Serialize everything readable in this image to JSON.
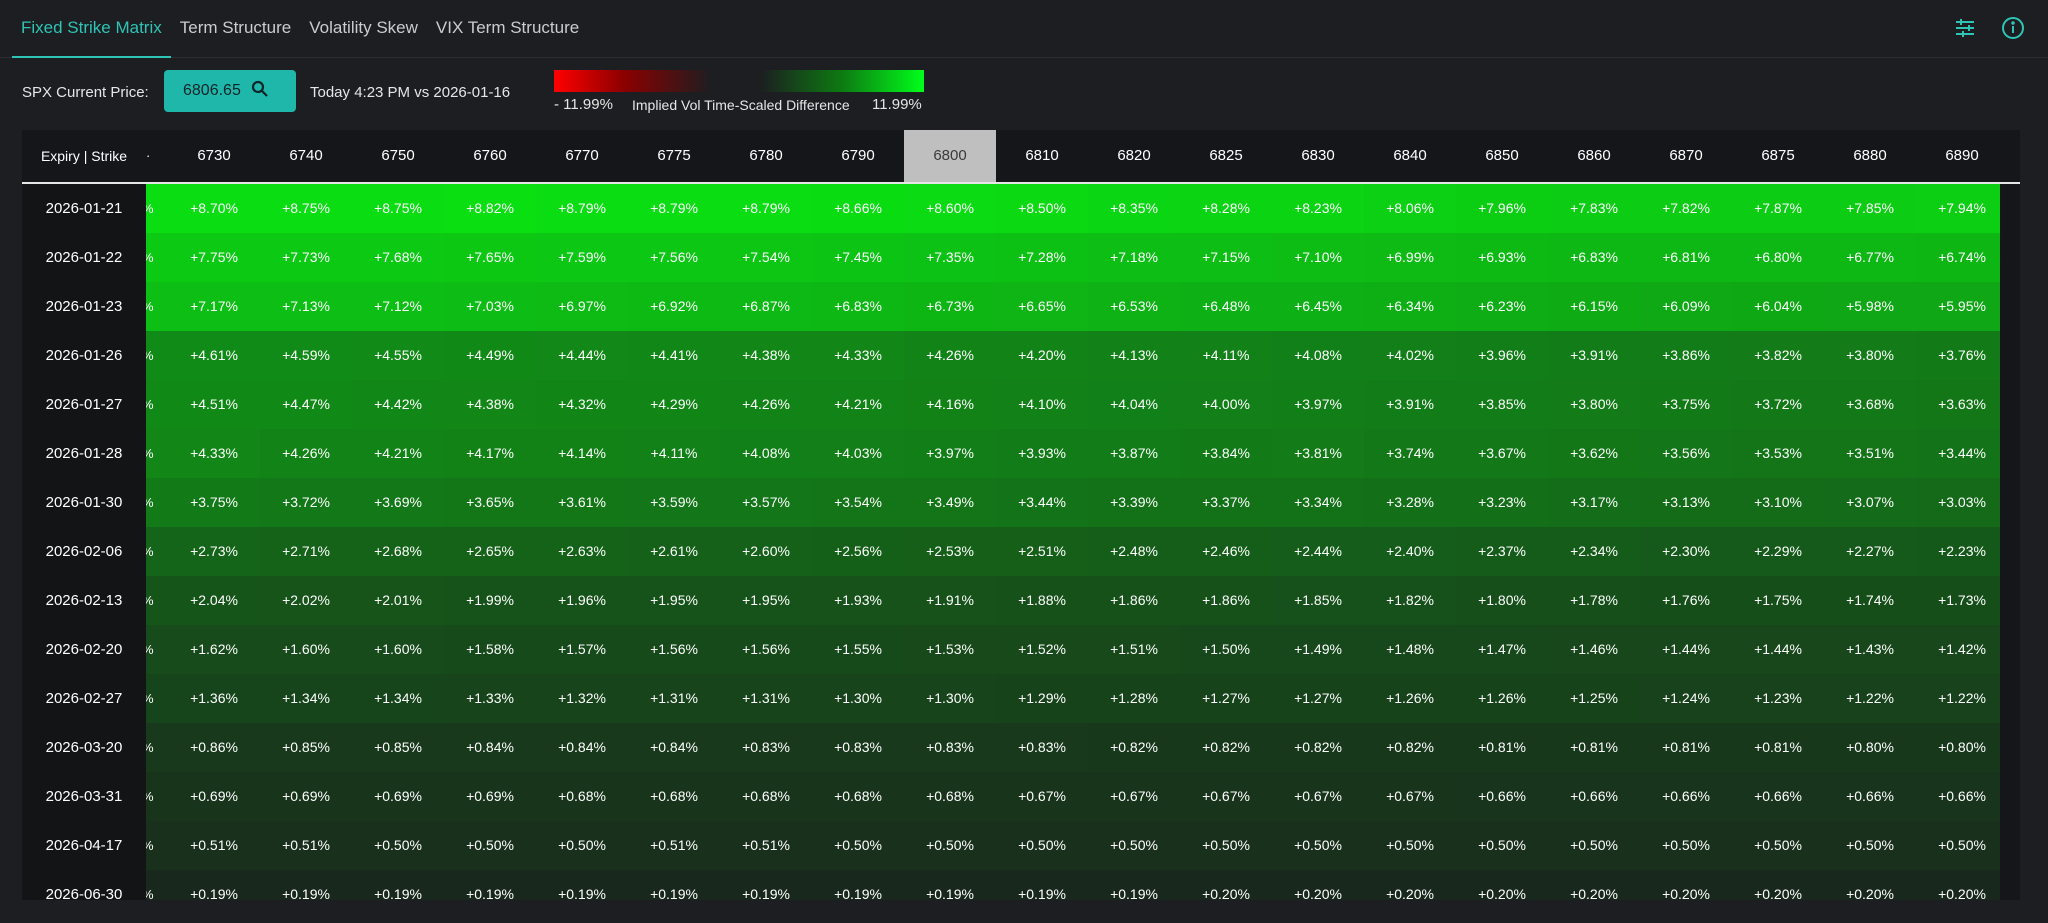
{
  "tabs": [
    {
      "label": "Fixed Strike Matrix",
      "active": true
    },
    {
      "label": "Term Structure",
      "active": false
    },
    {
      "label": "Volatility Skew",
      "active": false
    },
    {
      "label": "VIX Term Structure",
      "active": false
    }
  ],
  "toolbar": {
    "price_label": "SPX Current Price:",
    "price_value": "6806.65",
    "compare_text": "Today 4:23 PM vs 2026-01-16",
    "legend_min": "- 11.99%",
    "legend_title": "Implied Vol Time-Scaled Difference",
    "legend_max": "11.99%",
    "legend_colors": {
      "negative": "#ff0000",
      "positive": "#00ff1a"
    }
  },
  "matrix": {
    "corner_label": "Expiry | Strike",
    "atm_strike": "6800",
    "strikes": [
      "6730",
      "6740",
      "6750",
      "6760",
      "6770",
      "6775",
      "6780",
      "6790",
      "6800",
      "6810",
      "6820",
      "6825",
      "6830",
      "6840",
      "6850",
      "6860",
      "6870",
      "6875",
      "6880",
      "6890"
    ],
    "rows": [
      {
        "expiry": "2026-01-21",
        "cells": [
          "+8.70%",
          "+8.75%",
          "+8.75%",
          "+8.82%",
          "+8.79%",
          "+8.79%",
          "+8.79%",
          "+8.66%",
          "+8.60%",
          "+8.50%",
          "+8.35%",
          "+8.28%",
          "+8.23%",
          "+8.06%",
          "+7.96%",
          "+7.83%",
          "+7.82%",
          "+7.87%",
          "+7.85%",
          "+7.94%"
        ]
      },
      {
        "expiry": "2026-01-22",
        "cells": [
          "+7.75%",
          "+7.73%",
          "+7.68%",
          "+7.65%",
          "+7.59%",
          "+7.56%",
          "+7.54%",
          "+7.45%",
          "+7.35%",
          "+7.28%",
          "+7.18%",
          "+7.15%",
          "+7.10%",
          "+6.99%",
          "+6.93%",
          "+6.83%",
          "+6.81%",
          "+6.80%",
          "+6.77%",
          "+6.74%"
        ]
      },
      {
        "expiry": "2026-01-23",
        "cells": [
          "+7.17%",
          "+7.13%",
          "+7.12%",
          "+7.03%",
          "+6.97%",
          "+6.92%",
          "+6.87%",
          "+6.83%",
          "+6.73%",
          "+6.65%",
          "+6.53%",
          "+6.48%",
          "+6.45%",
          "+6.34%",
          "+6.23%",
          "+6.15%",
          "+6.09%",
          "+6.04%",
          "+5.98%",
          "+5.95%"
        ]
      },
      {
        "expiry": "2026-01-26",
        "cells": [
          "+4.61%",
          "+4.59%",
          "+4.55%",
          "+4.49%",
          "+4.44%",
          "+4.41%",
          "+4.38%",
          "+4.33%",
          "+4.26%",
          "+4.20%",
          "+4.13%",
          "+4.11%",
          "+4.08%",
          "+4.02%",
          "+3.96%",
          "+3.91%",
          "+3.86%",
          "+3.82%",
          "+3.80%",
          "+3.76%"
        ]
      },
      {
        "expiry": "2026-01-27",
        "cells": [
          "+4.51%",
          "+4.47%",
          "+4.42%",
          "+4.38%",
          "+4.32%",
          "+4.29%",
          "+4.26%",
          "+4.21%",
          "+4.16%",
          "+4.10%",
          "+4.04%",
          "+4.00%",
          "+3.97%",
          "+3.91%",
          "+3.85%",
          "+3.80%",
          "+3.75%",
          "+3.72%",
          "+3.68%",
          "+3.63%"
        ]
      },
      {
        "expiry": "2026-01-28",
        "cells": [
          "+4.33%",
          "+4.26%",
          "+4.21%",
          "+4.17%",
          "+4.14%",
          "+4.11%",
          "+4.08%",
          "+4.03%",
          "+3.97%",
          "+3.93%",
          "+3.87%",
          "+3.84%",
          "+3.81%",
          "+3.74%",
          "+3.67%",
          "+3.62%",
          "+3.56%",
          "+3.53%",
          "+3.51%",
          "+3.44%"
        ]
      },
      {
        "expiry": "2026-01-30",
        "cells": [
          "+3.75%",
          "+3.72%",
          "+3.69%",
          "+3.65%",
          "+3.61%",
          "+3.59%",
          "+3.57%",
          "+3.54%",
          "+3.49%",
          "+3.44%",
          "+3.39%",
          "+3.37%",
          "+3.34%",
          "+3.28%",
          "+3.23%",
          "+3.17%",
          "+3.13%",
          "+3.10%",
          "+3.07%",
          "+3.03%"
        ]
      },
      {
        "expiry": "2026-02-06",
        "cells": [
          "+2.73%",
          "+2.71%",
          "+2.68%",
          "+2.65%",
          "+2.63%",
          "+2.61%",
          "+2.60%",
          "+2.56%",
          "+2.53%",
          "+2.51%",
          "+2.48%",
          "+2.46%",
          "+2.44%",
          "+2.40%",
          "+2.37%",
          "+2.34%",
          "+2.30%",
          "+2.29%",
          "+2.27%",
          "+2.23%"
        ]
      },
      {
        "expiry": "2026-02-13",
        "cells": [
          "+2.04%",
          "+2.02%",
          "+2.01%",
          "+1.99%",
          "+1.96%",
          "+1.95%",
          "+1.95%",
          "+1.93%",
          "+1.91%",
          "+1.88%",
          "+1.86%",
          "+1.86%",
          "+1.85%",
          "+1.82%",
          "+1.80%",
          "+1.78%",
          "+1.76%",
          "+1.75%",
          "+1.74%",
          "+1.73%"
        ]
      },
      {
        "expiry": "2026-02-20",
        "cells": [
          "+1.62%",
          "+1.60%",
          "+1.60%",
          "+1.58%",
          "+1.57%",
          "+1.56%",
          "+1.56%",
          "+1.55%",
          "+1.53%",
          "+1.52%",
          "+1.51%",
          "+1.50%",
          "+1.49%",
          "+1.48%",
          "+1.47%",
          "+1.46%",
          "+1.44%",
          "+1.44%",
          "+1.43%",
          "+1.42%"
        ]
      },
      {
        "expiry": "2026-02-27",
        "cells": [
          "+1.36%",
          "+1.34%",
          "+1.34%",
          "+1.33%",
          "+1.32%",
          "+1.31%",
          "+1.31%",
          "+1.30%",
          "+1.30%",
          "+1.29%",
          "+1.28%",
          "+1.27%",
          "+1.27%",
          "+1.26%",
          "+1.26%",
          "+1.25%",
          "+1.24%",
          "+1.23%",
          "+1.22%",
          "+1.22%"
        ]
      },
      {
        "expiry": "2026-03-20",
        "cells": [
          "+0.86%",
          "+0.85%",
          "+0.85%",
          "+0.84%",
          "+0.84%",
          "+0.84%",
          "+0.83%",
          "+0.83%",
          "+0.83%",
          "+0.83%",
          "+0.82%",
          "+0.82%",
          "+0.82%",
          "+0.82%",
          "+0.81%",
          "+0.81%",
          "+0.81%",
          "+0.81%",
          "+0.80%",
          "+0.80%"
        ]
      },
      {
        "expiry": "2026-03-31",
        "cells": [
          "+0.69%",
          "+0.69%",
          "+0.69%",
          "+0.69%",
          "+0.68%",
          "+0.68%",
          "+0.68%",
          "+0.68%",
          "+0.68%",
          "+0.67%",
          "+0.67%",
          "+0.67%",
          "+0.67%",
          "+0.67%",
          "+0.66%",
          "+0.66%",
          "+0.66%",
          "+0.66%",
          "+0.66%",
          "+0.66%"
        ]
      },
      {
        "expiry": "2026-04-17",
        "cells": [
          "+0.51%",
          "+0.51%",
          "+0.50%",
          "+0.50%",
          "+0.50%",
          "+0.51%",
          "+0.51%",
          "+0.50%",
          "+0.50%",
          "+0.50%",
          "+0.50%",
          "+0.50%",
          "+0.50%",
          "+0.50%",
          "+0.50%",
          "+0.50%",
          "+0.50%",
          "+0.50%",
          "+0.50%",
          "+0.50%"
        ]
      },
      {
        "expiry": "2026-06-30",
        "cells": [
          "+0.19%",
          "+0.19%",
          "+0.19%",
          "+0.19%",
          "+0.19%",
          "+0.19%",
          "+0.19%",
          "+0.19%",
          "+0.19%",
          "+0.19%",
          "+0.19%",
          "+0.20%",
          "+0.20%",
          "+0.20%",
          "+0.20%",
          "+0.20%",
          "+0.20%",
          "+0.20%",
          "+0.20%",
          "+0.20%"
        ]
      }
    ]
  }
}
